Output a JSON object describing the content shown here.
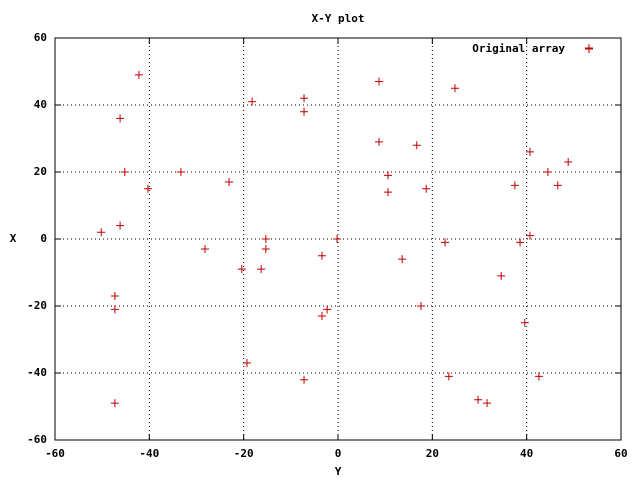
{
  "chart_data": {
    "type": "scatter",
    "title": "X-Y plot",
    "x_label": "Y",
    "y_label": "X",
    "xlim": [
      -60,
      60
    ],
    "ylim": [
      -60,
      60
    ],
    "xticks": [
      -60,
      -40,
      -20,
      0,
      20,
      40,
      60
    ],
    "yticks": [
      -60,
      -40,
      -20,
      0,
      20,
      40,
      60
    ],
    "grid": true,
    "legend": "top-right",
    "series": [
      {
        "name": "Original array",
        "color": "#c00000",
        "x": [
          53.2,
          -42.2,
          8.7,
          24.8,
          -18.2,
          -7.2,
          -7.2,
          -46.2,
          8.7,
          16.7,
          40.7,
          48.8,
          -45.2,
          -33.3,
          10.6,
          44.5,
          -40.3,
          -23.1,
          10.6,
          18.7,
          37.5,
          46.6,
          -50.2,
          -46.2,
          -15.3,
          -0.2,
          -28.2,
          -15.3,
          22.7,
          38.6,
          40.7,
          -20.4,
          -16.3,
          -3.4,
          13.6,
          34.6,
          -47.3,
          -47.3,
          17.6,
          -2.3,
          -3.4,
          39.6,
          -19.3,
          -7.2,
          23.5,
          42.6,
          -47.3,
          29.7,
          31.6
        ],
        "values": [
          57,
          49,
          47,
          45,
          41,
          42,
          38,
          36,
          29,
          28,
          26,
          23,
          20,
          20,
          19,
          20,
          15,
          17,
          14,
          15,
          16,
          16,
          2,
          4,
          0,
          0,
          -3,
          -3,
          -1,
          -1,
          1,
          -9,
          -9,
          -5,
          -6,
          -11,
          -17,
          -21,
          -20,
          -21,
          -23,
          -25,
          -37,
          -42,
          -41,
          -41,
          -49,
          -48,
          -49
        ]
      }
    ]
  }
}
